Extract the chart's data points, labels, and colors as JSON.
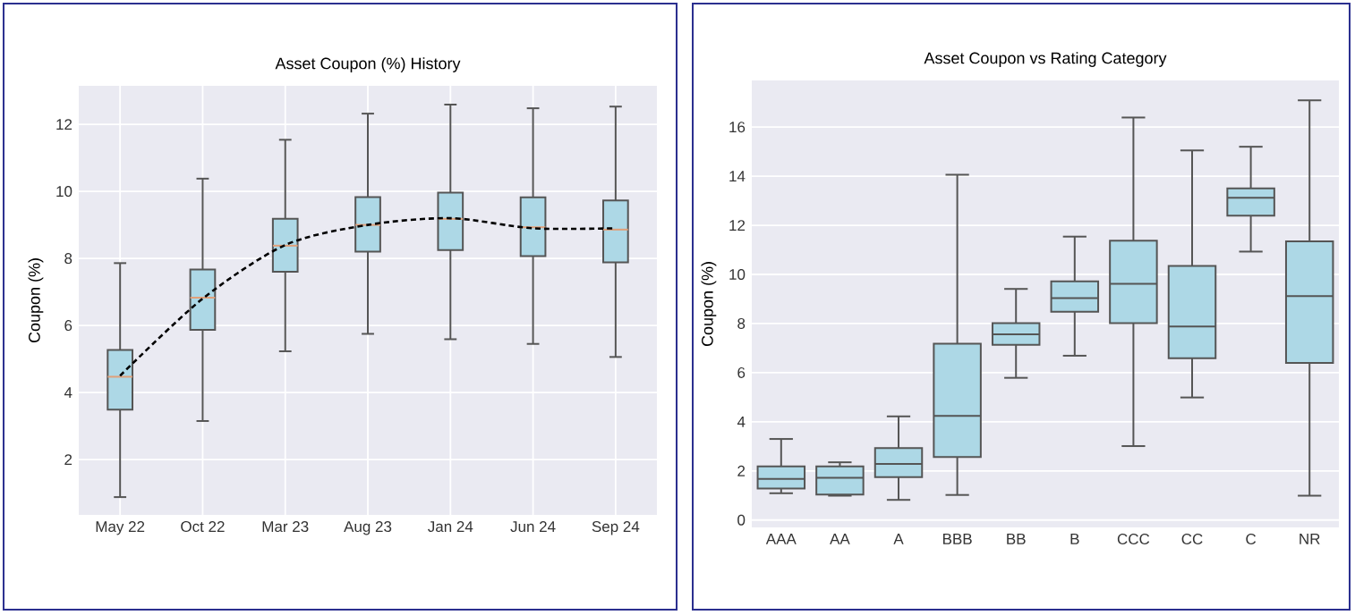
{
  "chart_data": [
    {
      "type": "box",
      "title": "Asset Coupon (%) History",
      "ylabel": "Coupon (%)",
      "categories": [
        "May 22",
        "Oct 22",
        "Mar 23",
        "Aug 23",
        "Jan 24",
        "Jun 24",
        "Sep 24"
      ],
      "ylim": [
        0.35,
        13.15
      ],
      "yticks": [
        2,
        4,
        6,
        8,
        10,
        12
      ],
      "grid": true,
      "series": [
        {
          "type": "box",
          "color": "#add8e6",
          "boxes": [
            {
              "low": 0.88,
              "q1": 3.49,
              "median": 4.47,
              "q3": 5.27,
              "high": 7.86
            },
            {
              "low": 3.15,
              "q1": 5.87,
              "median": 6.83,
              "q3": 7.67,
              "high": 10.38
            },
            {
              "low": 5.23,
              "q1": 7.6,
              "median": 8.38,
              "q3": 9.18,
              "high": 11.54
            },
            {
              "low": 5.75,
              "q1": 8.2,
              "median": 9.0,
              "q3": 9.83,
              "high": 12.32
            },
            {
              "low": 5.59,
              "q1": 8.25,
              "median": 9.18,
              "q3": 9.96,
              "high": 12.59
            },
            {
              "low": 5.45,
              "q1": 8.07,
              "median": 8.93,
              "q3": 9.82,
              "high": 12.48
            },
            {
              "low": 5.06,
              "q1": 7.88,
              "median": 8.86,
              "q3": 9.73,
              "high": 12.53
            }
          ]
        },
        {
          "type": "line",
          "color": "#000000",
          "line_style": "dashed",
          "values": [
            4.5,
            6.8,
            8.4,
            9.0,
            9.2,
            8.9,
            8.9
          ]
        }
      ]
    },
    {
      "type": "box",
      "title": "Asset Coupon vs Rating Category",
      "ylabel": "Coupon (%)",
      "categories": [
        "AAA",
        "AA",
        "A",
        "BBB",
        "BB",
        "B",
        "CCC",
        "CC",
        "C",
        "NR"
      ],
      "ylim": [
        -0.3,
        17.9
      ],
      "yticks": [
        0,
        2,
        4,
        6,
        8,
        10,
        12,
        14,
        16
      ],
      "grid": "y",
      "series": [
        {
          "type": "box",
          "color": "#add8e6",
          "boxes": [
            {
              "low": 1.09,
              "q1": 1.28,
              "median": 1.67,
              "q3": 2.18,
              "high": 3.3
            },
            {
              "low": 0.99,
              "q1": 1.04,
              "median": 1.72,
              "q3": 2.18,
              "high": 2.35
            },
            {
              "low": 0.82,
              "q1": 1.75,
              "median": 2.28,
              "q3": 2.93,
              "high": 4.22
            },
            {
              "low": 1.02,
              "q1": 2.57,
              "median": 4.24,
              "q3": 7.18,
              "high": 14.06
            },
            {
              "low": 5.79,
              "q1": 7.13,
              "median": 7.56,
              "q3": 8.02,
              "high": 9.41
            },
            {
              "low": 6.69,
              "q1": 8.48,
              "median": 9.04,
              "q3": 9.72,
              "high": 11.54
            },
            {
              "low": 3.01,
              "q1": 8.02,
              "median": 9.62,
              "q3": 11.37,
              "high": 16.39
            },
            {
              "low": 4.99,
              "q1": 6.59,
              "median": 7.88,
              "q3": 10.35,
              "high": 15.05
            },
            {
              "low": 10.93,
              "q1": 12.39,
              "median": 13.12,
              "q3": 13.5,
              "high": 15.2
            },
            {
              "low": 0.99,
              "q1": 6.4,
              "median": 9.12,
              "q3": 11.35,
              "high": 17.09
            }
          ]
        }
      ]
    }
  ]
}
